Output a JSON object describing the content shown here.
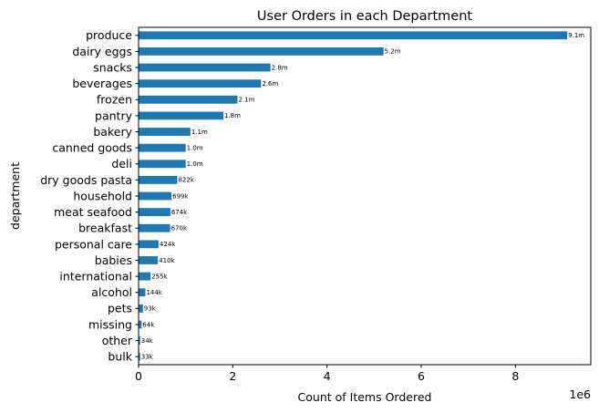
{
  "chart_data": {
    "type": "bar",
    "orientation": "horizontal",
    "title": "User Orders in each Department",
    "xlabel": "Count of Items Ordered",
    "ylabel": "department",
    "x_offset_label": "1e6",
    "xlim": [
      0,
      9.6
    ],
    "x_ticks": [
      "0",
      "2",
      "4",
      "6",
      "8"
    ],
    "bar_color": "#1f77b4",
    "grid": false,
    "categories": [
      "produce",
      "dairy eggs",
      "snacks",
      "beverages",
      "frozen",
      "pantry",
      "bakery",
      "canned goods",
      "deli",
      "dry goods pasta",
      "household",
      "meat seafood",
      "breakfast",
      "personal care",
      "babies",
      "international",
      "alcohol",
      "pets",
      "missing",
      "other",
      "bulk"
    ],
    "values": [
      9.1,
      5.2,
      2.8,
      2.6,
      2.1,
      1.8,
      1.1,
      1.0,
      1.0,
      0.822,
      0.699,
      0.674,
      0.67,
      0.424,
      0.41,
      0.255,
      0.144,
      0.093,
      0.064,
      0.034,
      0.033
    ],
    "data_labels": [
      "9.1m",
      "5.2m",
      "2.8m",
      "2.6m",
      "2.1m",
      "1.8m",
      "1.1m",
      "1.0m",
      "1.0m",
      "822k",
      "699k",
      "674k",
      "670k",
      "424k",
      "410k",
      "255k",
      "144k",
      "93k",
      "64k",
      "34k",
      "33k"
    ]
  }
}
